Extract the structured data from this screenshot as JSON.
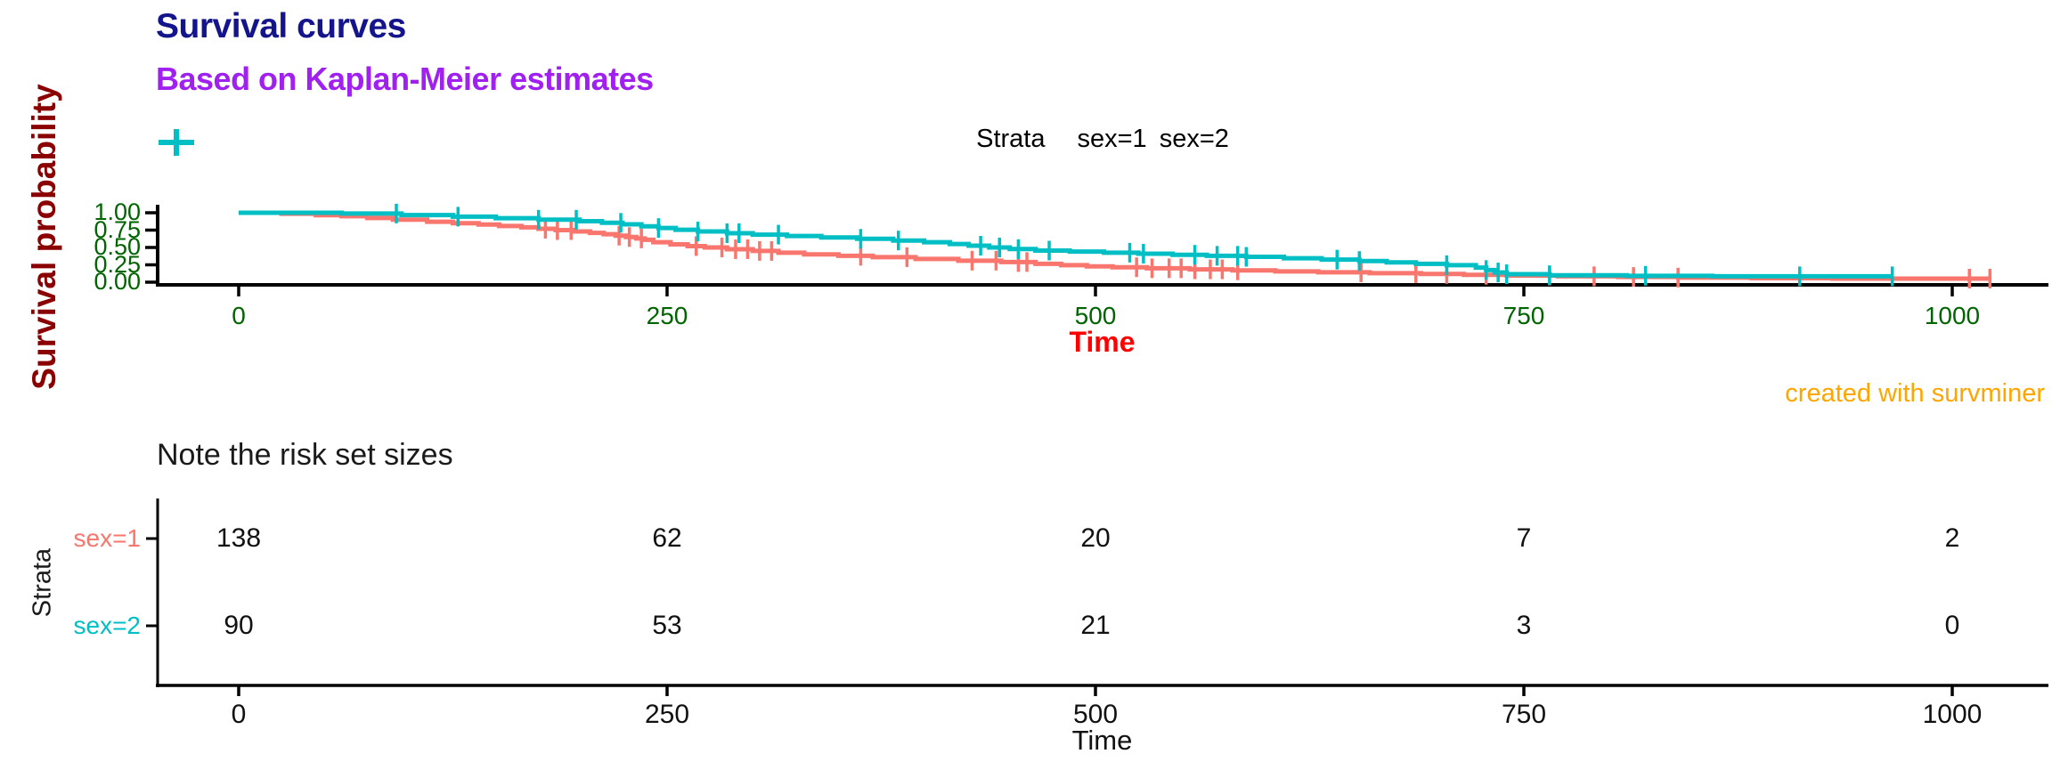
{
  "header": {
    "title": "Survival curves",
    "subtitle": "Based on Kaplan-Meier estimates"
  },
  "caption": "created with survminer",
  "legend": {
    "title": "Strata",
    "items": [
      {
        "label": "sex=1",
        "color": "#F8766D"
      },
      {
        "label": "sex=2",
        "color": "#00BFC4"
      }
    ]
  },
  "colors": {
    "title": "#14148C",
    "subtitle": "#A020F0",
    "caption": "#FFA500",
    "x_label": "#FF0000",
    "y_label": "#8B0000",
    "tick_labels": "#006400",
    "axis": "#000000",
    "strata1": "#F8766D",
    "strata2": "#00BFC4"
  },
  "chart_data": {
    "type": "line",
    "subtype": "kaplan-meier-step",
    "title": "Survival curves",
    "subtitle": "Based on Kaplan-Meier estimates",
    "xlabel": "Time",
    "ylabel": "Survival probability",
    "xlim": [
      0,
      1040
    ],
    "ylim": [
      0,
      1
    ],
    "grid": false,
    "legend_position": "top-center",
    "xticks": [
      {
        "label": "0",
        "value": 0
      },
      {
        "label": "250",
        "value": 250
      },
      {
        "label": "500",
        "value": 500
      },
      {
        "label": "750",
        "value": 750
      },
      {
        "label": "1000",
        "value": 1000
      }
    ],
    "yticks": [
      {
        "label": "1.00",
        "value": 1.0
      },
      {
        "label": "0.75",
        "value": 0.75
      },
      {
        "label": "0.50",
        "value": 0.5
      },
      {
        "label": "0.25",
        "value": 0.25
      },
      {
        "label": "0.00",
        "value": 0.0
      }
    ],
    "series": [
      {
        "name": "sex=1",
        "color": "#F8766D",
        "end_time": 1022,
        "steps": [
          [
            0,
            1.0
          ],
          [
            25,
            0.985
          ],
          [
            45,
            0.965
          ],
          [
            60,
            0.95
          ],
          [
            75,
            0.925
          ],
          [
            90,
            0.9
          ],
          [
            110,
            0.87
          ],
          [
            125,
            0.85
          ],
          [
            140,
            0.83
          ],
          [
            152,
            0.81
          ],
          [
            165,
            0.79
          ],
          [
            175,
            0.77
          ],
          [
            185,
            0.75
          ],
          [
            195,
            0.73
          ],
          [
            205,
            0.71
          ],
          [
            213,
            0.69
          ],
          [
            220,
            0.67
          ],
          [
            226,
            0.65
          ],
          [
            232,
            0.63
          ],
          [
            237,
            0.61
          ],
          [
            242,
            0.575
          ],
          [
            252,
            0.545
          ],
          [
            262,
            0.52
          ],
          [
            272,
            0.5
          ],
          [
            285,
            0.475
          ],
          [
            300,
            0.45
          ],
          [
            315,
            0.425
          ],
          [
            330,
            0.4
          ],
          [
            350,
            0.38
          ],
          [
            370,
            0.36
          ],
          [
            395,
            0.335
          ],
          [
            420,
            0.31
          ],
          [
            445,
            0.29
          ],
          [
            465,
            0.265
          ],
          [
            480,
            0.245
          ],
          [
            495,
            0.228
          ],
          [
            510,
            0.215
          ],
          [
            530,
            0.2
          ],
          [
            555,
            0.185
          ],
          [
            580,
            0.17
          ],
          [
            605,
            0.155
          ],
          [
            630,
            0.142
          ],
          [
            660,
            0.13
          ],
          [
            690,
            0.118
          ],
          [
            715,
            0.106
          ],
          [
            740,
            0.095
          ],
          [
            770,
            0.085
          ],
          [
            805,
            0.075
          ],
          [
            840,
            0.066
          ],
          [
            883,
            0.058
          ],
          [
            930,
            0.052
          ]
        ],
        "censor_times": [
          179,
          186,
          194,
          222,
          228,
          235,
          267,
          282,
          290,
          297,
          304,
          311,
          363,
          390,
          428,
          442,
          455,
          460,
          524,
          533,
          543,
          550,
          558,
          567,
          574,
          583,
          655,
          687,
          705,
          728,
          765,
          791,
          814,
          840,
          1010,
          1022
        ]
      },
      {
        "name": "sex=2",
        "color": "#00BFC4",
        "end_time": 965,
        "steps": [
          [
            0,
            1.0
          ],
          [
            60,
            0.989
          ],
          [
            95,
            0.966
          ],
          [
            125,
            0.944
          ],
          [
            150,
            0.922
          ],
          [
            175,
            0.9
          ],
          [
            199,
            0.878
          ],
          [
            212,
            0.855
          ],
          [
            224,
            0.833
          ],
          [
            235,
            0.805
          ],
          [
            245,
            0.78
          ],
          [
            255,
            0.755
          ],
          [
            268,
            0.73
          ],
          [
            285,
            0.705
          ],
          [
            300,
            0.685
          ],
          [
            320,
            0.665
          ],
          [
            340,
            0.645
          ],
          [
            361,
            0.625
          ],
          [
            382,
            0.6
          ],
          [
            400,
            0.575
          ],
          [
            415,
            0.55
          ],
          [
            426,
            0.525
          ],
          [
            438,
            0.5
          ],
          [
            450,
            0.477
          ],
          [
            465,
            0.455
          ],
          [
            485,
            0.44
          ],
          [
            505,
            0.425
          ],
          [
            525,
            0.41
          ],
          [
            545,
            0.395
          ],
          [
            565,
            0.38
          ],
          [
            588,
            0.365
          ],
          [
            610,
            0.345
          ],
          [
            632,
            0.325
          ],
          [
            654,
            0.305
          ],
          [
            670,
            0.285
          ],
          [
            687,
            0.265
          ],
          [
            705,
            0.245
          ],
          [
            722,
            0.21
          ],
          [
            728,
            0.175
          ],
          [
            733,
            0.14
          ],
          [
            740,
            0.115
          ],
          [
            765,
            0.1
          ],
          [
            810,
            0.092
          ],
          [
            860,
            0.085
          ]
        ],
        "censor_times": [
          92,
          128,
          175,
          197,
          223,
          245,
          268,
          285,
          292,
          315,
          363,
          385,
          433,
          444,
          455,
          473,
          520,
          528,
          558,
          571,
          583,
          588,
          641,
          654,
          705,
          728,
          735,
          740,
          765,
          821,
          911,
          965
        ]
      }
    ]
  },
  "risk_table": {
    "title": "Note the risk set sizes",
    "axis_label": "Strata",
    "xlabel": "Time",
    "xticks": [
      {
        "label": "0",
        "value": 0
      },
      {
        "label": "250",
        "value": 250
      },
      {
        "label": "500",
        "value": 500
      },
      {
        "label": "750",
        "value": 750
      },
      {
        "label": "1000",
        "value": 1000
      }
    ],
    "rows": [
      {
        "label": "sex=1",
        "color": "#F8766D",
        "values": [
          "138",
          "62",
          "20",
          "7",
          "2"
        ]
      },
      {
        "label": "sex=2",
        "color": "#00BFC4",
        "values": [
          "90",
          "53",
          "21",
          "3",
          "0"
        ]
      }
    ]
  }
}
